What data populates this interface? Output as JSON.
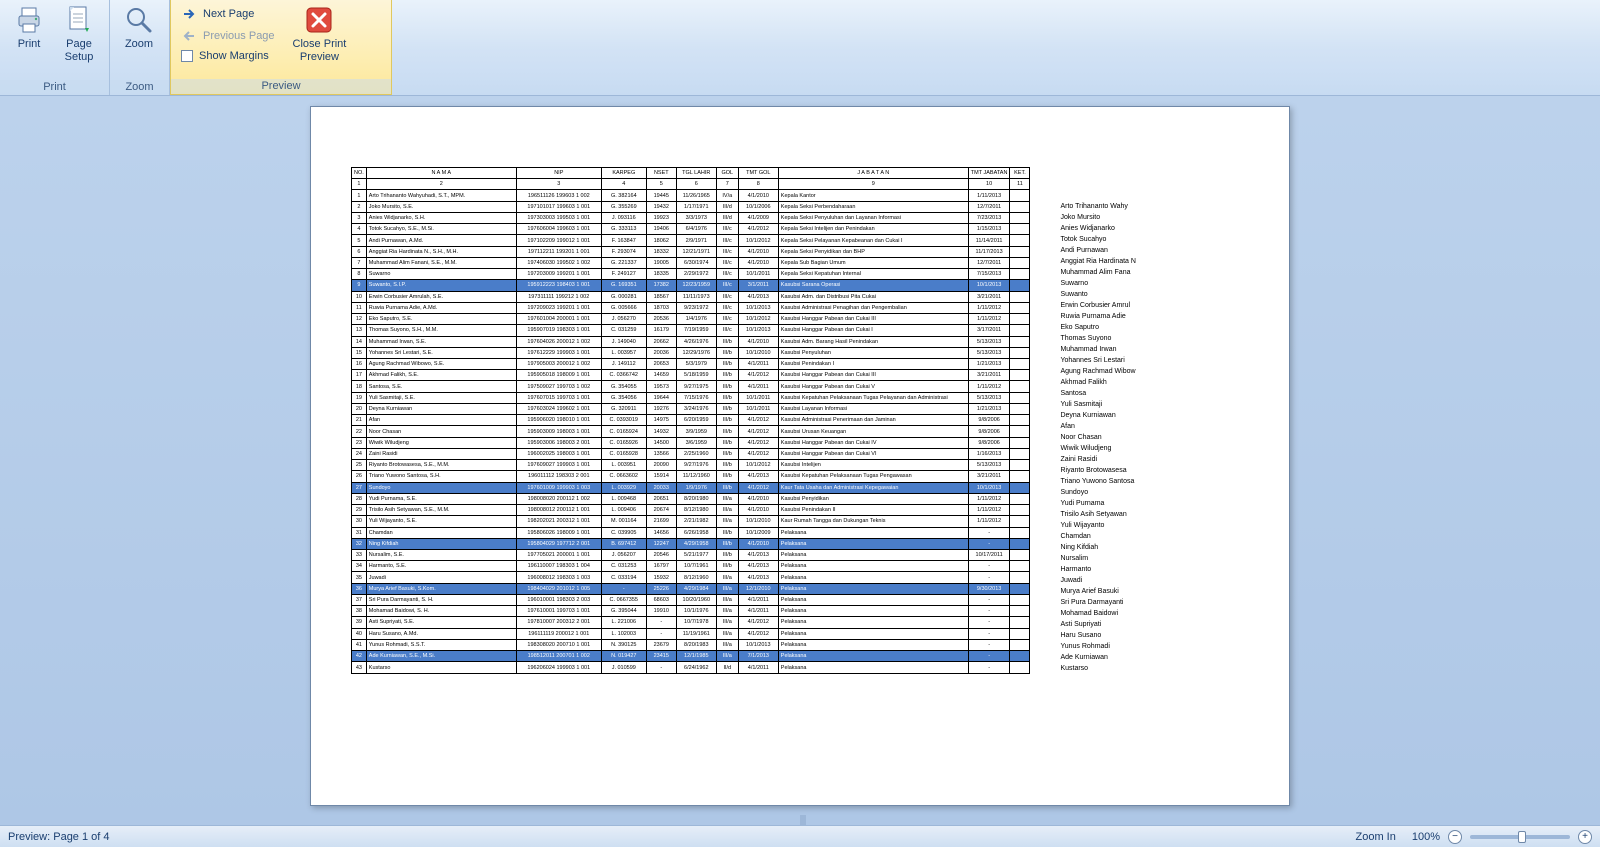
{
  "ribbon": {
    "groups": {
      "print": {
        "label": "Print",
        "print_btn": "Print",
        "page_setup_btn": "Page\nSetup"
      },
      "zoom": {
        "label": "Zoom",
        "zoom_btn": "Zoom"
      },
      "preview": {
        "label": "Preview",
        "next_page": "Next Page",
        "prev_page": "Previous Page",
        "show_margins": "Show Margins",
        "close_btn": "Close Print\nPreview"
      }
    }
  },
  "status": {
    "left": "Preview: Page 1 of 4",
    "zoom_label": "Zoom In",
    "zoom_pct": "100%"
  },
  "table": {
    "cols": [
      "NO.",
      "N A M A",
      "NIP",
      "KARPEG",
      "NSET",
      "TGL LAHIR",
      "GOL",
      "TMT GOL",
      "J A B A T A N",
      "TMT JABATAN",
      "KET."
    ],
    "subhead": [
      "1",
      "2",
      "3",
      "4",
      "5",
      "6",
      "7",
      "8",
      "9",
      "10",
      "11"
    ],
    "widths": [
      "col-no",
      "col-nama",
      "col-nip",
      "col-kar",
      "col-nset",
      "col-tgl",
      "col-gol",
      "col-tmt",
      "col-jab",
      "col-tmtj",
      "col-ket"
    ],
    "highlight_rows": [
      8,
      26,
      31,
      35,
      41
    ],
    "rows": [
      [
        "1",
        "Arto Trihananto Wahyuhadi, S.T., MPM.",
        "196511126 199603 1 002",
        "G. 382164",
        "19445",
        "11/26/1965",
        "IV/a",
        "4/1/2010",
        "Kepala Kantor",
        "1/11/2013",
        ""
      ],
      [
        "2",
        "Joko Mursito, S.E.",
        "197101017 199603 1 001",
        "G. 355269",
        "19432",
        "1/17/1971",
        "III/d",
        "10/1/2006",
        "Kepala Seksi Perbendaharaan",
        "12/7/2011",
        ""
      ],
      [
        "3",
        "Anies Widjanarko, S.H.",
        "197303003 199503 1 001",
        "J. 093116",
        "19923",
        "3/3/1973",
        "III/d",
        "4/1/2009",
        "Kepala Seksi Penyuluhan dan Layanan Informasi",
        "7/23/2013",
        ""
      ],
      [
        "4",
        "Totok Sucahyo, S.E., M.Si.",
        "197606004 199603 1 001",
        "G. 333113",
        "19406",
        "6/4/1976",
        "III/c",
        "4/1/2012",
        "Kepala Seksi Intelijen dan Penindakan",
        "1/15/2013",
        ""
      ],
      [
        "5",
        "Andi Purnawan, A.Md.",
        "197102209 199012 1 001",
        "F. 163847",
        "18062",
        "2/9/1971",
        "III/c",
        "10/1/2012",
        "Kepala Seksi Pelayanan Kepabeanan dan Cukai I",
        "11/14/2011",
        ""
      ],
      [
        "6",
        "Anggiat Ria Hardinata N., S.H., M.H.",
        "197112211 199201 1 001",
        "F. 293074",
        "18332",
        "12/21/1971",
        "III/c",
        "4/1/2010",
        "Kepala Seksi Penyidikan dan BHP",
        "11/17/2013",
        ""
      ],
      [
        "7",
        "Muhammad Alim Fanani, S.E., M.M.",
        "197406030 199502 1 002",
        "G. 221337",
        "19005",
        "6/30/1974",
        "III/c",
        "4/1/2010",
        "Kepala Sub Bagian Umum",
        "12/7/2011",
        ""
      ],
      [
        "8",
        "Suwarno",
        "197203009 199201 1 001",
        "F. 249127",
        "18335",
        "2/29/1972",
        "III/c",
        "10/1/2011",
        "Kepala Seksi Kepatuhan Internal",
        "7/15/2013",
        ""
      ],
      [
        "9",
        "Suwanto, S.I.P.",
        "195912223 198403 1 001",
        "G. 169351",
        "17382",
        "12/23/1959",
        "III/c",
        "3/1/2011",
        "Kasubsi Sarana Operasi",
        "10/1/2013",
        ""
      ],
      [
        "10",
        "Erwin Corbusier Amrulah, S.E.",
        "197311111 199212 1 002",
        "G. 000281",
        "18567",
        "11/11/1973",
        "III/c",
        "4/1/2013",
        "Kasubsi Adm. dan Distribusi Pita Cukai",
        "3/21/2011",
        ""
      ],
      [
        "11",
        "Ruwia Purnama Adie, A.Md.",
        "197209023 199201 1 001",
        "G. 005666",
        "18703",
        "9/23/1972",
        "III/c",
        "10/1/2013",
        "Kasubsi Administrasi Penagihan dan Pengembalian",
        "1/11/2012",
        ""
      ],
      [
        "12",
        "Eko Saputro, S.E.",
        "197601004 200001 1 001",
        "J. 056270",
        "20536",
        "1/4/1976",
        "III/c",
        "10/1/2012",
        "Kasubsi Hanggar Pabean dan Cukai III",
        "1/11/2012",
        ""
      ],
      [
        "13",
        "Thomas Suyono, S.H., M.M.",
        "195907019 198303 1 001",
        "C. 031259",
        "16179",
        "7/19/1959",
        "III/c",
        "10/1/2013",
        "Kasubsi Hanggar Pabean dan Cukai I",
        "3/17/2011",
        ""
      ],
      [
        "14",
        "Muhammad Irwan, S.E.",
        "197604026 200012 1 002",
        "J. 149040",
        "20662",
        "4/26/1976",
        "III/b",
        "4/1/2010",
        "Kasubsi Adm. Barang Hasil Penindakan",
        "5/13/2013",
        ""
      ],
      [
        "15",
        "Yohannes Sri Lestari, S.E.",
        "197612229 199903 1 001",
        "L. 003957",
        "20036",
        "12/29/1976",
        "III/b",
        "10/1/2010",
        "Kasubsi Penyuluhan",
        "5/13/2013",
        ""
      ],
      [
        "16",
        "Agung Rachmad Wibowo, S.E.",
        "197905003 200012 1 002",
        "J. 149112",
        "20653",
        "5/3/1979",
        "III/b",
        "4/1/2011",
        "Kasubsi Penindakan I",
        "1/21/2013",
        ""
      ],
      [
        "17",
        "Akhmad Falikh, S.E.",
        "195905018 198009 1 001",
        "C. 0366742",
        "14659",
        "5/18/1959",
        "III/b",
        "4/1/2012",
        "Kasubsi Hanggar Pabean dan Cukai III",
        "3/21/2011",
        ""
      ],
      [
        "18",
        "Santosa, S.E.",
        "197509027 199703 1 002",
        "G. 354055",
        "19573",
        "9/27/1975",
        "III/b",
        "4/1/2011",
        "Kasubsi Hanggar Pabean dan Cukai V",
        "1/11/2012",
        ""
      ],
      [
        "19",
        "Yuli Sasmitaji, S.E.",
        "197607015 199703 1 001",
        "G. 354056",
        "19644",
        "7/15/1976",
        "III/b",
        "10/1/2011",
        "Kasubsi Kepatuhan Pelaksanaan Tugas Pelayanan dan Administrasi",
        "5/13/2013",
        ""
      ],
      [
        "20",
        "Deyna Kurniawan",
        "197603024 199602 1 001",
        "G. 320911",
        "19276",
        "3/24/1976",
        "III/b",
        "10/1/2011",
        "Kasubsi Layanan Informasi",
        "1/21/2013",
        ""
      ],
      [
        "21",
        "Afan",
        "195906020 198010 1 001",
        "C. 0393019",
        "14975",
        "6/20/1959",
        "III/b",
        "4/1/2012",
        "Kasubsi Administrasi Penerimaan dan Jaminan",
        "9/8/2006",
        ""
      ],
      [
        "22",
        "Noor Chasan",
        "195903009 198003 1 001",
        "C. 0165924",
        "14932",
        "3/9/1959",
        "III/b",
        "4/1/2012",
        "Kasubsi Urusan Keuangan",
        "9/8/2006",
        ""
      ],
      [
        "23",
        "Wiwik Wiludjeng",
        "195903006 198003 2 001",
        "C. 0165926",
        "14500",
        "3/6/1959",
        "III/b",
        "4/1/2012",
        "Kasubsi Hanggar Pabean dan Cukai IV",
        "9/8/2006",
        ""
      ],
      [
        "24",
        "Zaini Rasidi",
        "196002025 198003 1 001",
        "C. 0165928",
        "13566",
        "2/25/1960",
        "III/b",
        "4/1/2012",
        "Kasubsi Hanggar Pabean dan Cukai VI",
        "1/16/2013",
        ""
      ],
      [
        "25",
        "Riyanto Brotowasesa, S.E., M.M.",
        "197609027 199903 1 001",
        "L. 003951",
        "20090",
        "9/27/1976",
        "III/b",
        "10/1/2012",
        "Kasubsi Intelijen",
        "5/13/2013",
        ""
      ],
      [
        "26",
        "Triano Yuwono Santosa, S.H.",
        "196011112 198303 2 001",
        "C. 0663602",
        "15914",
        "11/12/1960",
        "III/b",
        "4/1/2013",
        "Kasubsi Kepatuhan Pelaksanaan Tugas Pengawasan",
        "3/21/2011",
        ""
      ],
      [
        "27",
        "Sundoyo",
        "197601009 199903 1 003",
        "L. 003929",
        "20033",
        "1/9/1976",
        "III/b",
        "4/1/2012",
        "Kaur Tata Usaha dan Administrasi Kepegawaian",
        "10/1/2013",
        ""
      ],
      [
        "28",
        "Yudi Purnama, S.E.",
        "198008020 200112 1 002",
        "L. 009468",
        "20651",
        "8/20/1980",
        "III/a",
        "4/1/2010",
        "Kasubsi Penyidikan",
        "1/11/2012",
        ""
      ],
      [
        "29",
        "Trisilo Asih Setyawan, S.E., M.M.",
        "198008012 200112 1 001",
        "L. 009406",
        "20674",
        "8/12/1980",
        "III/a",
        "4/1/2010",
        "Kasubsi Penindakan II",
        "1/11/2012",
        ""
      ],
      [
        "30",
        "Yuli Wijayanto, S.E.",
        "198202021 200312 1 001",
        "M. 001164",
        "21699",
        "2/21/1982",
        "III/a",
        "10/1/2010",
        "Kaur Rumah Tangga dan Dukungan Teknis",
        "1/11/2012",
        ""
      ],
      [
        "31",
        "Chamdan",
        "195806026 198009 1 001",
        "C. 039905",
        "14656",
        "6/26/1958",
        "III/b",
        "10/1/2009",
        "Pelaksana",
        "-",
        ""
      ],
      [
        "32",
        "Ning Kifdiah",
        "195804029 197712 2 001",
        "B. 697412",
        "12247",
        "4/29/1958",
        "III/b",
        "4/1/2010",
        "Pelaksana",
        "-",
        ""
      ],
      [
        "33",
        "Nursalim, S.E.",
        "197705021 200001 1 001",
        "J. 056207",
        "20546",
        "5/21/1977",
        "III/b",
        "4/1/2013",
        "Pelaksana",
        "10/17/2011",
        ""
      ],
      [
        "34",
        "Harmanto, S.E.",
        "196110007 198303 1 004",
        "C. 031253",
        "16797",
        "10/7/1961",
        "III/b",
        "4/1/2013",
        "Pelaksana",
        "-",
        ""
      ],
      [
        "35",
        "Juwadi",
        "196008012 198303 1 003",
        "C. 033194",
        "15932",
        "8/12/1960",
        "III/a",
        "4/1/2013",
        "Pelaksana",
        "-",
        ""
      ],
      [
        "36",
        "Murya Arief Basuki, S.Kom.",
        "198404029 201012 1 005",
        "-",
        "25226",
        "4/29/1984",
        "III/a",
        "12/1/2010",
        "Pelaksana",
        "9/30/2013",
        ""
      ],
      [
        "37",
        "Sri Pura Darmayanti, S. H.",
        "196010001 198303 2 003",
        "C. 0667355",
        "68603",
        "10/20/1960",
        "III/a",
        "4/1/2011",
        "Pelaksana",
        "-",
        ""
      ],
      [
        "38",
        "Mohamad Baidowi, S. H.",
        "197610001 199703 1 001",
        "G. 395044",
        "19910",
        "10/1/1976",
        "III/a",
        "4/1/2011",
        "Pelaksana",
        "-",
        ""
      ],
      [
        "39",
        "Asti Supriyati, S.E.",
        "197810007 200312 2 001",
        "L. 221006",
        "-",
        "10/7/1978",
        "III/a",
        "4/1/2012",
        "Pelaksana",
        "-",
        ""
      ],
      [
        "40",
        "Haru Susano, A.Md.",
        "196111119 200012 1 001",
        "L. 102003",
        "-",
        "11/19/1961",
        "III/a",
        "4/1/2012",
        "Pelaksana",
        "-",
        ""
      ],
      [
        "41",
        "Yunus Rohmadi, S.S.T.",
        "198308020 200710 1 001",
        "N. 390125",
        "23679",
        "8/20/1983",
        "III/a",
        "10/1/2013",
        "Pelaksana",
        "-",
        ""
      ],
      [
        "42",
        "Ade Kurniawan, S.E., M.Si.",
        "198512011 200701 1 002",
        "N. 019427",
        "23415",
        "12/1/1985",
        "III/a",
        "7/1/2013",
        "Pelaksana",
        "-",
        ""
      ],
      [
        "43",
        "Kustarso",
        "196206024 199903 1 001",
        "J. 010599",
        "-",
        "6/24/1962",
        "II/d",
        "4/1/2011",
        "Pelaksana",
        "-",
        ""
      ]
    ]
  },
  "namelist": [
    "Arto Trihananto Wahy",
    "Joko Mursito",
    "Anies Widjanarko",
    "Totok Sucahyo",
    "Andi Purnawan",
    "Anggiat Ria Hardinata N",
    "Muhammad Alim Fana",
    "Suwarno",
    "Suwanto",
    "Erwin Corbusier Amrul",
    "Ruwia Purnama Adie",
    "Eko Saputro",
    "Thomas Suyono",
    "Muhammad Irwan",
    "Yohannes Sri Lestari",
    "Agung Rachmad Wibow",
    "Akhmad Falikh",
    "Santosa",
    "Yuli Sasmitaji",
    "Deyna Kurniawan",
    "Afan",
    "Noor Chasan",
    "Wiwik Wiludjeng",
    "Zaini Rasidi",
    "Riyanto Brotowasesa",
    "Triano Yuwono Santosa",
    "Sundoyo",
    "Yudi Purnama",
    "Trisilo Asih Setyawan",
    "Yuli Wijayanto",
    "Chamdan",
    "Ning Kifdiah",
    "Nursalim",
    "Harmanto",
    "Juwadi",
    "Murya Arief Basuki",
    "Sri Pura Darmayanti",
    "Mohamad Baidowi",
    "Asti Supriyati",
    "Haru Susano",
    "Yunus Rohmadi",
    "Ade Kurniawan",
    "Kustarso"
  ]
}
